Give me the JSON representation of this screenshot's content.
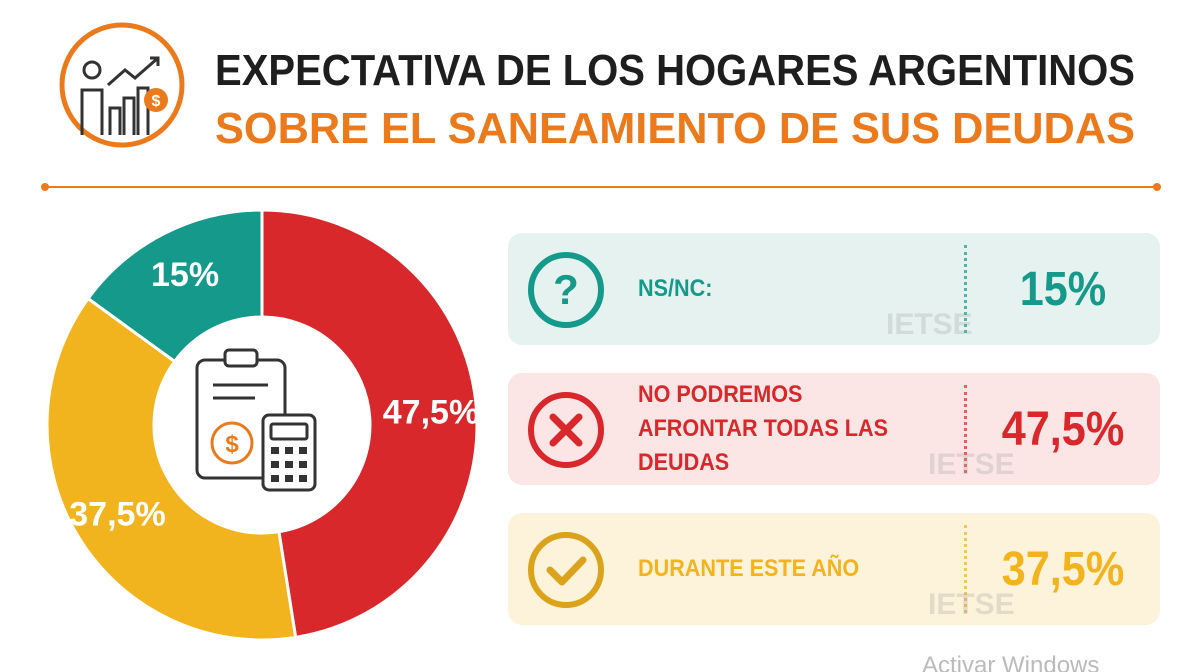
{
  "title": "EXPECTATIVA DE LOS HOGARES ARGENTINOS",
  "subtitle": "SOBRE EL SANEAMIENTO DE SUS DEUDAS",
  "watermark": "IETSE",
  "os_notice": "Activar Windows",
  "chart_data": {
    "type": "donut",
    "categories": [
      "NS/NC:",
      "NO PODREMOS AFRONTAR TODAS LAS DEUDAS",
      "DURANTE ESTE AÑO"
    ],
    "values": [
      15,
      47.5,
      37.5
    ],
    "value_labels": [
      "15%",
      "47,5%",
      "37,5%"
    ],
    "colors": [
      "#14998a",
      "#d8282b",
      "#f1b41f"
    ]
  }
}
